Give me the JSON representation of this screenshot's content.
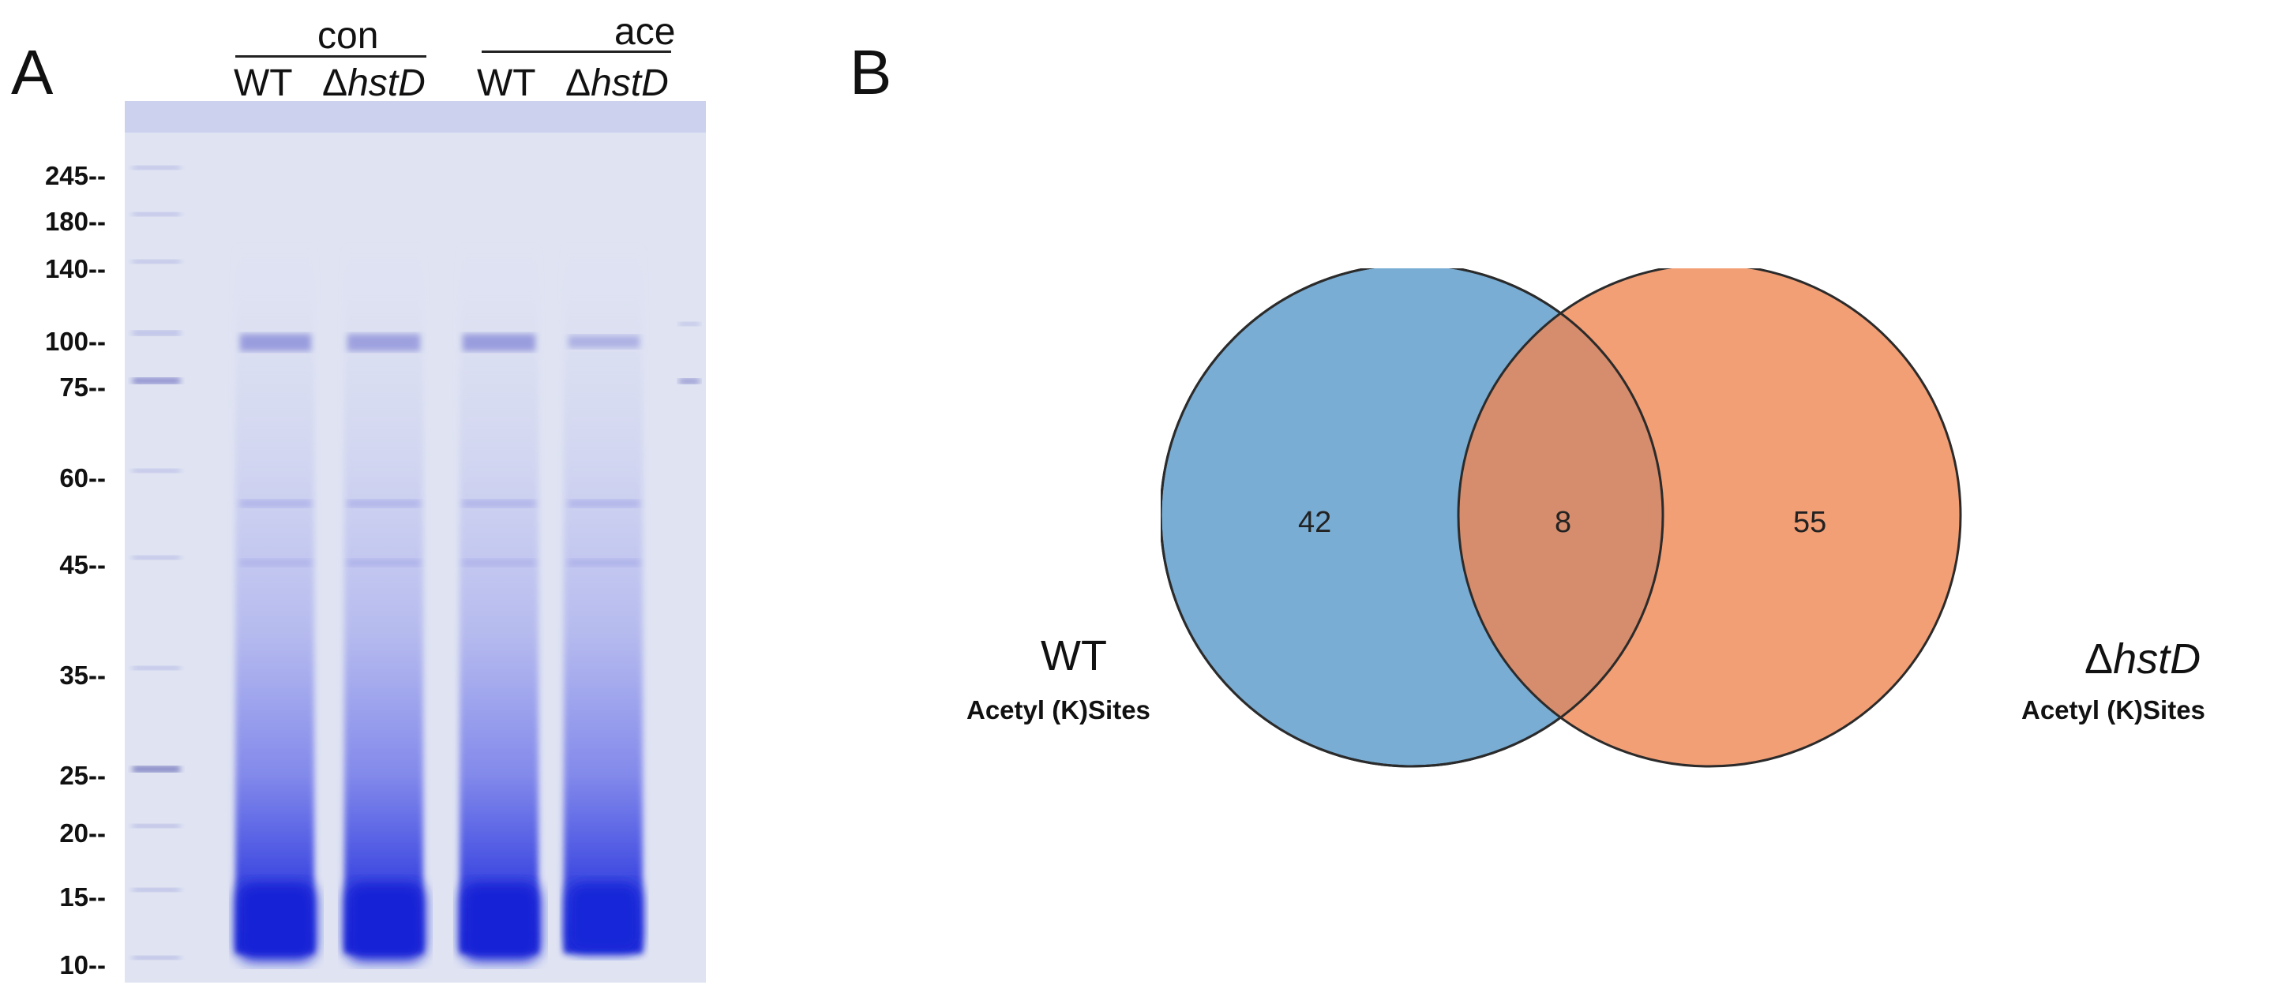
{
  "panel_a": {
    "letter": "A",
    "groups": [
      {
        "label": "con",
        "lanes": [
          "WT",
          "ΔhstD"
        ]
      },
      {
        "label": "ace",
        "lanes": [
          "WT",
          "ΔhstD"
        ]
      }
    ],
    "markers": [
      "245--",
      "180--",
      "140--",
      "100--",
      "75--",
      "60--",
      "45--",
      "35--",
      "25--",
      "20--",
      "15--",
      "10--"
    ]
  },
  "panel_b": {
    "letter": "B",
    "venn": {
      "left_only": "42",
      "intersection": "8",
      "right_only": "55",
      "left_set": {
        "name": "WT",
        "subtitle": "Acetyl (K)Sites",
        "color": "#5b9bcb"
      },
      "right_set": {
        "name_prefix": "Δ",
        "name_italic": "hstD",
        "subtitle": "Acetyl (K)Sites",
        "color": "#ef8450"
      }
    }
  }
}
